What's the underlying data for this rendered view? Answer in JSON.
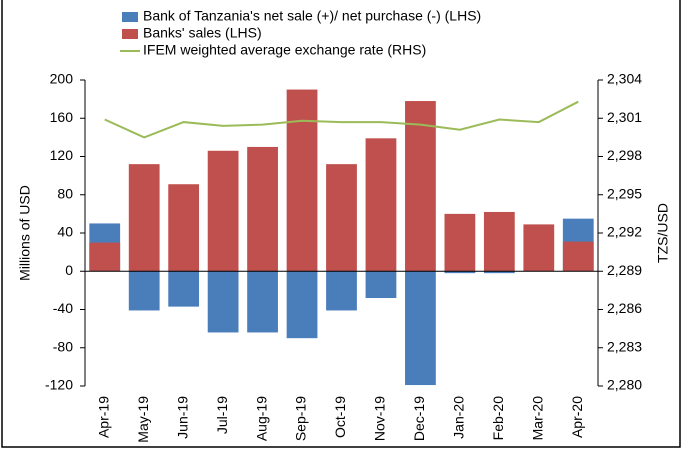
{
  "chart_data": {
    "type": "bar",
    "categories": [
      "Apr-19",
      "May-19",
      "Jun-19",
      "Jul-19",
      "Aug-19",
      "Sep-19",
      "Oct-19",
      "Nov-19",
      "Dec-19",
      "Jan-20",
      "Feb-20",
      "Mar-20",
      "Apr-20"
    ],
    "series": [
      {
        "name": "Bank of Tanzania's net sale (+)/ net purchase (-) (LHS)",
        "color": "#4a7ebb",
        "type": "bar",
        "values": [
          50,
          -41,
          -37,
          -64,
          -64,
          -70,
          -41,
          -28,
          -119,
          -2,
          -2,
          0,
          55
        ]
      },
      {
        "name": "Banks' sales (LHS)",
        "color": "#c0504d",
        "type": "bar",
        "values": [
          30,
          112,
          91,
          126,
          130,
          190,
          112,
          139,
          178,
          60,
          62,
          49,
          31
        ]
      },
      {
        "name": "IFEM weighted average exchange rate (RHS)",
        "color": "#9bbb59",
        "type": "line",
        "axis": "y2",
        "values": [
          2300.9,
          2299.5,
          2300.7,
          2300.4,
          2300.5,
          2300.8,
          2300.7,
          2300.7,
          2300.5,
          2300.1,
          2300.9,
          2300.7,
          2302.3
        ]
      }
    ],
    "ylabel": "Millions of USD",
    "y2label": "TZS/USD",
    "ylim": [
      -120,
      200
    ],
    "yticks": [
      -120,
      -80,
      -40,
      0,
      40,
      80,
      120,
      160,
      200
    ],
    "y2lim": [
      2280,
      2304
    ],
    "y2ticks": [
      {
        "value": 2280,
        "label": "2,280"
      },
      {
        "value": 2283,
        "label": "2,283"
      },
      {
        "value": 2286,
        "label": "2,286"
      },
      {
        "value": 2289,
        "label": "2,289"
      },
      {
        "value": 2292,
        "label": "2,292"
      },
      {
        "value": 2295,
        "label": "2,295"
      },
      {
        "value": 2298,
        "label": "2,298"
      },
      {
        "value": 2301,
        "label": "2,301"
      },
      {
        "value": 2304,
        "label": "2,304"
      }
    ],
    "grid": false
  }
}
